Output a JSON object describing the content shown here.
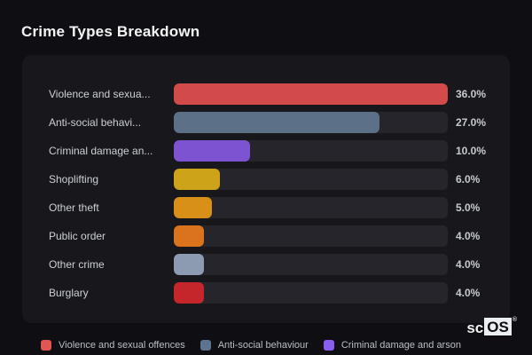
{
  "page": {
    "title": "Crime Types Breakdown"
  },
  "chart_data": {
    "type": "bar",
    "orientation": "horizontal",
    "title": "Crime Types Breakdown",
    "categories": [
      "Violence and sexual offences",
      "Anti-social behaviour",
      "Criminal damage and arson",
      "Shoplifting",
      "Other theft",
      "Public order",
      "Other crime",
      "Burglary"
    ],
    "display_labels": [
      "Violence and sexua...",
      "Anti-social behavi...",
      "Criminal damage an...",
      "Shoplifting",
      "Other theft",
      "Public order",
      "Other crime",
      "Burglary"
    ],
    "values": [
      36.0,
      27.0,
      10.0,
      6.0,
      5.0,
      4.0,
      4.0,
      4.0
    ],
    "value_labels": [
      "36.0%",
      "27.0%",
      "10.0%",
      "6.0%",
      "5.0%",
      "4.0%",
      "4.0%",
      "4.0%"
    ],
    "bar_colors": [
      "#d34a4a",
      "#5c7187",
      "#7d53d2",
      "#cda31a",
      "#d89019",
      "#d9731e",
      "#8c9bb1",
      "#c5262b"
    ],
    "xlim": [
      0,
      36
    ],
    "grid": false,
    "legend_position": "bottom",
    "legend": [
      {
        "label": "Violence and sexual offences",
        "color": "#e25555"
      },
      {
        "label": "Anti-social behaviour",
        "color": "#5d7390"
      },
      {
        "label": "Criminal damage and arson",
        "color": "#8b5cf0"
      }
    ],
    "colors": {
      "page_background": "#0f0f13",
      "card_background": "#17171c",
      "track_background": "#25252b",
      "title_text": "#f3f4f6",
      "label_text": "#ccd0d6",
      "value_text": "#c6cad1",
      "legend_text": "#b9bec7"
    }
  },
  "watermark": {
    "prefix": "sc",
    "block": "OS",
    "registered": "®"
  }
}
